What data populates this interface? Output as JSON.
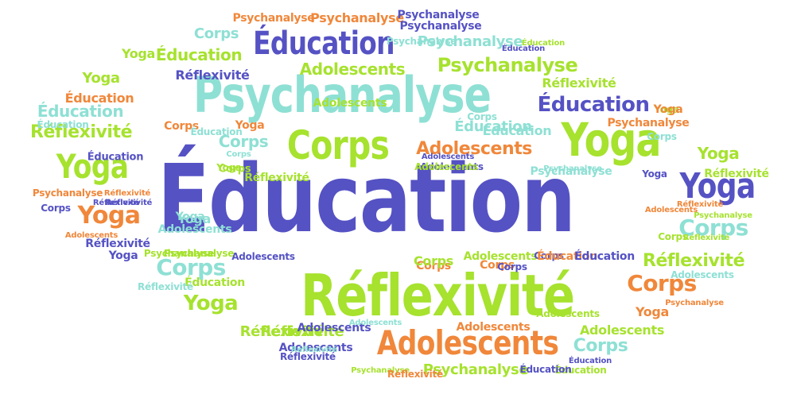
{
  "colors": {
    "indigo": "#5552c4",
    "lime": "#a6e22e",
    "aqua": "#8ee0d4",
    "orange": "#f0873a",
    "white": "#ffffff"
  },
  "word_cloud": {
    "words": [
      {
        "text": "Éducation",
        "color": "indigo"
      },
      {
        "text": "Psychanalyse",
        "color": "aqua"
      },
      {
        "text": "Réflexivité",
        "color": "lime"
      },
      {
        "text": "Adolescents",
        "color": "orange"
      },
      {
        "text": "Corps",
        "color": "lime"
      },
      {
        "text": "Yoga",
        "color": "lime"
      },
      {
        "text": "Yoga",
        "color": "indigo"
      },
      {
        "text": "Yoga",
        "color": "lime"
      },
      {
        "text": "Éducation",
        "color": "indigo"
      },
      {
        "text": "Éducation",
        "color": "indigo"
      },
      {
        "text": "Psychanalyse",
        "color": "lime"
      },
      {
        "text": "Psychanalyse",
        "color": "lime"
      },
      {
        "text": "Adolescents",
        "color": "orange"
      },
      {
        "text": "Corps",
        "color": "aqua"
      },
      {
        "text": "Corps",
        "color": "orange"
      },
      {
        "text": "Corps",
        "color": "aqua"
      },
      {
        "text": "Corps",
        "color": "aqua"
      },
      {
        "text": "Réflexivité",
        "color": "lime"
      },
      {
        "text": "Réflexivité",
        "color": "lime"
      },
      {
        "text": "Réflexivité",
        "color": "lime"
      },
      {
        "text": "Yoga",
        "color": "orange"
      },
      {
        "text": "Yoga",
        "color": "lime"
      },
      {
        "text": "Yoga",
        "color": "lime"
      },
      {
        "text": "Éducation",
        "color": "lime"
      },
      {
        "text": "Adolescents",
        "color": "lime"
      },
      {
        "text": "Adolescents",
        "color": "aqua"
      },
      {
        "text": "Psychanalyse",
        "color": "orange"
      },
      {
        "text": "Psychanalyse",
        "color": "orange"
      },
      {
        "text": "Psychanalyse",
        "color": "aqua"
      },
      {
        "text": "Psychanalyse",
        "color": "indigo"
      },
      {
        "text": "Corps",
        "color": "aqua"
      },
      {
        "text": "Corps",
        "color": "lime"
      },
      {
        "text": "Corps",
        "color": "orange"
      },
      {
        "text": "Corps",
        "color": "orange"
      },
      {
        "text": "Corps",
        "color": "lime"
      },
      {
        "text": "Yoga",
        "color": "lime"
      },
      {
        "text": "Yoga",
        "color": "orange"
      },
      {
        "text": "Yoga",
        "color": "lime"
      },
      {
        "text": "Yoga",
        "color": "aqua"
      },
      {
        "text": "Yoga",
        "color": "orange"
      },
      {
        "text": "Yoga",
        "color": "indigo"
      },
      {
        "text": "Éducation",
        "color": "aqua"
      },
      {
        "text": "Éducation",
        "color": "indigo"
      },
      {
        "text": "Éducation",
        "color": "orange"
      },
      {
        "text": "Éducation",
        "color": "lime"
      },
      {
        "text": "Réflexivité",
        "color": "indigo"
      },
      {
        "text": "Réflexivité",
        "color": "lime"
      },
      {
        "text": "Réflexivité",
        "color": "lime"
      },
      {
        "text": "Réflexivité",
        "color": "lime"
      },
      {
        "text": "Réflexivité",
        "color": "indigo"
      },
      {
        "text": "Réflexivité",
        "color": "orange"
      },
      {
        "text": "Adolescents",
        "color": "lime"
      },
      {
        "text": "Adolescents",
        "color": "indigo"
      },
      {
        "text": "Adolescents",
        "color": "lime"
      },
      {
        "text": "Adolescents",
        "color": "lime"
      },
      {
        "text": "Adolescents",
        "color": "orange"
      },
      {
        "text": "Adolescents",
        "color": "indigo"
      },
      {
        "text": "Psychanalyse",
        "color": "aqua"
      },
      {
        "text": "Psychanalyse",
        "color": "lime"
      },
      {
        "text": "Psychanalyse",
        "color": "aqua"
      },
      {
        "text": "Psychanalyse",
        "color": "lime"
      },
      {
        "text": "Éducation",
        "color": "aqua"
      },
      {
        "text": "Éducation",
        "color": "indigo"
      },
      {
        "text": "Éducation",
        "color": "aqua"
      },
      {
        "text": "Éducation",
        "color": "lime"
      },
      {
        "text": "Corps",
        "color": "indigo"
      },
      {
        "text": "Corps",
        "color": "aqua"
      },
      {
        "text": "Corps",
        "color": "aqua"
      },
      {
        "text": "Corps",
        "color": "indigo"
      },
      {
        "text": "Yoga",
        "color": "aqua"
      },
      {
        "text": "Yoga",
        "color": "indigo"
      },
      {
        "text": "Yoga",
        "color": "lime"
      },
      {
        "text": "Réflexivité",
        "color": "aqua"
      },
      {
        "text": "Réflexivité",
        "color": "indigo"
      },
      {
        "text": "Réflexivité",
        "color": "lime"
      },
      {
        "text": "Réflexivité",
        "color": "orange"
      },
      {
        "text": "Réflexivité",
        "color": "lime"
      },
      {
        "text": "Adolescents",
        "color": "indigo"
      },
      {
        "text": "Adolescents",
        "color": "lime"
      },
      {
        "text": "Adolescents",
        "color": "indigo"
      },
      {
        "text": "Adolescents",
        "color": "orange"
      },
      {
        "text": "Adolescents",
        "color": "aqua"
      },
      {
        "text": "Psychanalyse",
        "color": "lime"
      },
      {
        "text": "Psychanalyse",
        "color": "orange"
      },
      {
        "text": "Psychanalyse",
        "color": "aqua"
      },
      {
        "text": "Psychanalyse",
        "color": "lime"
      },
      {
        "text": "Psychanalyse",
        "color": "orange"
      },
      {
        "text": "Éducation",
        "color": "aqua"
      },
      {
        "text": "Éducation",
        "color": "indigo"
      },
      {
        "text": "Éducation",
        "color": "aqua"
      },
      {
        "text": "Éducation",
        "color": "indigo"
      },
      {
        "text": "Corps",
        "color": "aqua"
      },
      {
        "text": "Corps",
        "color": "lime"
      },
      {
        "text": "Corps",
        "color": "aqua"
      },
      {
        "text": "Yoga",
        "color": "orange"
      },
      {
        "text": "Yoga",
        "color": "lime"
      },
      {
        "text": "Réflexivité",
        "color": "orange"
      },
      {
        "text": "Réflexivité",
        "color": "indigo"
      },
      {
        "text": "Réflexivité",
        "color": "aqua"
      },
      {
        "text": "Adolescents",
        "color": "indigo"
      },
      {
        "text": "Adolescents",
        "color": "aqua"
      },
      {
        "text": "Psychanalyse",
        "color": "indigo"
      },
      {
        "text": "Éducation",
        "color": "lime"
      },
      {
        "text": "Corps",
        "color": "orange"
      },
      {
        "text": "Corps",
        "color": "indigo"
      },
      {
        "text": "Adolescents",
        "color": "orange"
      },
      {
        "text": "Psychanalyse",
        "color": "orange"
      },
      {
        "text": "Éducation",
        "color": "orange"
      },
      {
        "text": "Éducation",
        "color": "indigo"
      },
      {
        "text": "Réflexivité",
        "color": "indigo"
      },
      {
        "text": "Adolescents",
        "color": "lime"
      }
    ]
  }
}
